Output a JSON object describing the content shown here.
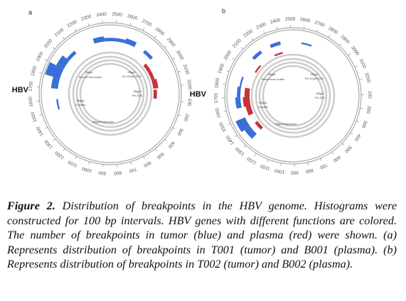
{
  "panels": [
    {
      "label": "a",
      "genome_label": "HBV",
      "ticks": [
        100,
        200,
        300,
        400,
        500,
        600,
        700,
        800,
        900,
        1000,
        1100,
        1200,
        1300,
        1400,
        1500,
        1600,
        1700,
        1800,
        1900,
        2000,
        2100,
        2200,
        2300,
        2400,
        2500,
        2600,
        2700,
        2800,
        2900,
        3000,
        3100,
        3200
      ],
      "genes": [
        "HBgpx",
        "Precore/core protein",
        "HBgp2",
        "Pre-S1/pre-S2/S",
        "HBgp3",
        "Pre-S2/S",
        "HBgp4",
        "X protein",
        "HBgp1/Polymerase"
      ],
      "tumor": {
        "start": [
          1500,
          1700,
          1800,
          1900,
          2000,
          2300,
          2400,
          2500,
          2600,
          2800
        ],
        "count": [
          1,
          4,
          9,
          5,
          2,
          3,
          2,
          2,
          3,
          2
        ]
      },
      "plasma": {
        "start": [
          2900,
          3000,
          3100,
          0
        ],
        "count": [
          2,
          2,
          3,
          2
        ]
      }
    },
    {
      "label": "b",
      "genome_label": "HBV",
      "ticks": [
        100,
        200,
        300,
        400,
        500,
        600,
        700,
        800,
        900,
        1000,
        1100,
        1200,
        1300,
        1400,
        1500,
        1600,
        1700,
        1800,
        1900,
        2000,
        2100,
        2200,
        2300,
        2400,
        2500,
        2600,
        2700,
        2800,
        2900,
        3000,
        3100,
        3200
      ],
      "genes": [
        "HBgpx",
        "Precore/core protein",
        "HBgp2",
        "Pre-S1/pre-S2/S",
        "HBgp3",
        "Pre-S2/S",
        "HBgp4",
        "X protein",
        "HBgp1/Polymerase"
      ],
      "tumor": {
        "start": [
          1300,
          1400,
          1600,
          1700,
          1800,
          2100,
          2300,
          2600
        ],
        "count": [
          4,
          6,
          3,
          2,
          1,
          2,
          2,
          1
        ]
      },
      "plasma": {
        "start": [
          1300,
          1500,
          1600,
          1700,
          2000,
          2300
        ],
        "count": [
          2,
          3,
          4,
          3,
          1,
          1
        ]
      }
    }
  ],
  "caption": {
    "figure": "Figure 2.",
    "text": "Distribution of breakpoints in the HBV genome. Histograms were constructed for 100 bp intervals. HBV genes with different functions are colored. The number of breakpoints in tumor (blue) and plasma (red) were shown. (a) Represents distribution of breakpoints in T001 (tumor) and B001 (plasma). (b) Represents distribution of breakpoints in T002 (tumor) and B002 (plasma)."
  }
}
